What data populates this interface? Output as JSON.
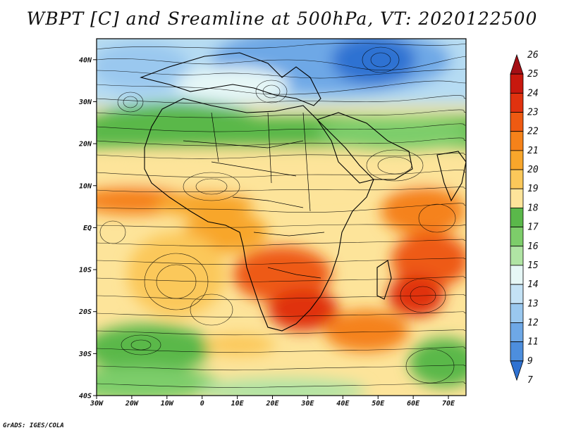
{
  "title": "WBPT [C] and Sreamline at 500hPa, VT: 2020122500",
  "credit": "GrADS: IGES/COLA",
  "map": {
    "lat_range": [
      -40,
      45
    ],
    "lon_range": [
      -30,
      75
    ],
    "lat_ticks": [
      "40N",
      "30N",
      "20N",
      "10N",
      "EQ",
      "10S",
      "20S",
      "30S",
      "40S"
    ],
    "lat_values": [
      40,
      30,
      20,
      10,
      0,
      -10,
      -20,
      -30,
      -40
    ],
    "lon_ticks": [
      "30W",
      "20W",
      "10W",
      "0",
      "10E",
      "20E",
      "30E",
      "40E",
      "50E",
      "60E",
      "70E"
    ],
    "lon_values": [
      -30,
      -20,
      -10,
      0,
      10,
      20,
      30,
      40,
      50,
      60,
      70
    ],
    "field": "wet-bulb potential temperature",
    "overlay": "streamlines",
    "streamline_color": "#000000",
    "coastline_color": "#000000"
  },
  "colorbar": {
    "labels": [
      "26",
      "25",
      "24",
      "23",
      "22",
      "21",
      "20",
      "19",
      "18",
      "17",
      "16",
      "15",
      "14",
      "13",
      "12",
      "11",
      "9",
      "7"
    ],
    "colors": [
      "#a50f15",
      "#c8180e",
      "#e0320f",
      "#ee5a12",
      "#f5821a",
      "#f8a62b",
      "#fbc85a",
      "#fde49a",
      "#5ab84a",
      "#7dcd6a",
      "#b0e4a4",
      "#e6f7f6",
      "#c4e2f5",
      "#9ac8ef",
      "#6ea8e6",
      "#4d8edd",
      "#2f72d2"
    ]
  }
}
